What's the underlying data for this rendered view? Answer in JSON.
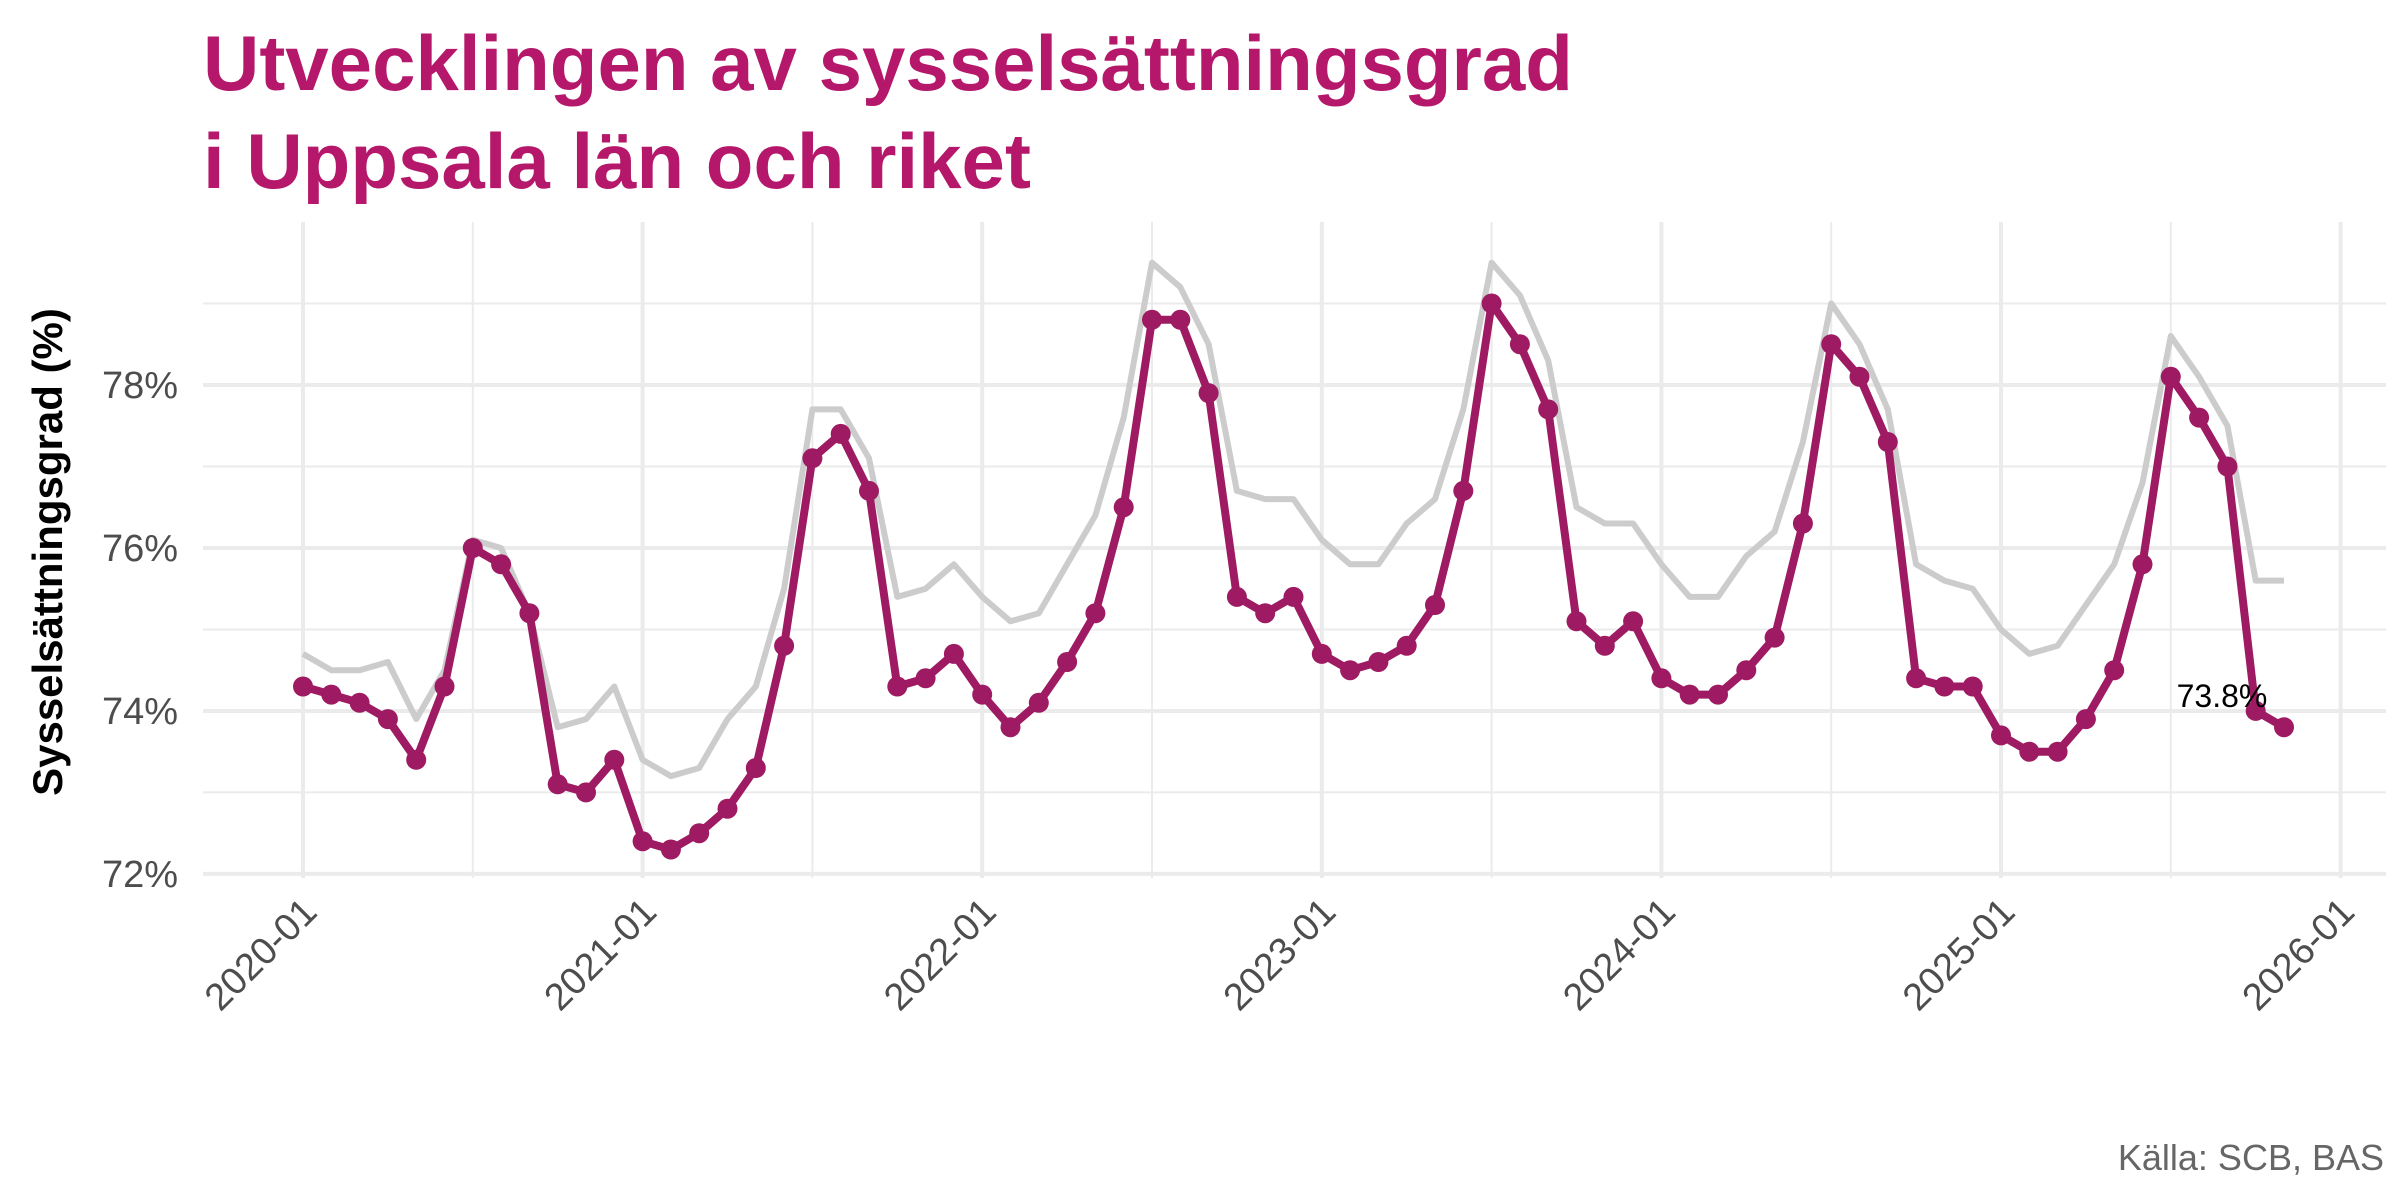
{
  "chart_data": {
    "type": "line",
    "title_lines": [
      "Utvecklingen av sysselsättningsgrad",
      "i Uppsala län och riket"
    ],
    "ylabel": "Sysselsättningsgrad (%)",
    "xlabel": "",
    "source": "Källa: SCB, BAS",
    "y_ticks": [
      72,
      74,
      76,
      78
    ],
    "y_tick_labels": [
      "72%",
      "74%",
      "76%",
      "78%"
    ],
    "ylim": [
      71.95,
      80.0
    ],
    "x_ticks": [
      "2020-01",
      "2021-01",
      "2022-01",
      "2023-01",
      "2024-01",
      "2025-01",
      "2026-01"
    ],
    "x_start": "2020-01",
    "x_end": "2025-11",
    "grid": true,
    "last_value_label": "73.8%",
    "colors": {
      "title": "#b5176a",
      "uppsala": "#9e1a62",
      "riket": "#cccccc",
      "grid": "#ebebeb"
    },
    "series": [
      {
        "key": "riket",
        "values": [
          74.7,
          74.5,
          74.5,
          74.6,
          73.9,
          74.5,
          76.1,
          76.0,
          75.2,
          73.8,
          73.9,
          74.3,
          73.4,
          73.2,
          73.3,
          73.9,
          74.3,
          75.5,
          77.7,
          77.7,
          77.1,
          75.4,
          75.5,
          75.8,
          75.4,
          75.1,
          75.2,
          75.8,
          76.4,
          77.6,
          79.5,
          79.2,
          78.5,
          76.7,
          76.6,
          76.6,
          76.1,
          75.8,
          75.8,
          76.3,
          76.6,
          77.7,
          79.5,
          79.1,
          78.3,
          76.5,
          76.3,
          76.3,
          75.8,
          75.4,
          75.4,
          75.9,
          76.2,
          77.3,
          79.0,
          78.5,
          77.7,
          75.8,
          75.6,
          75.5,
          75.0,
          74.7,
          74.8,
          75.3,
          75.8,
          76.8,
          78.6,
          78.1,
          77.5,
          75.6,
          75.6
        ]
      },
      {
        "key": "uppsala",
        "values": [
          74.3,
          74.2,
          74.1,
          73.9,
          73.4,
          74.3,
          76.0,
          75.8,
          75.2,
          73.1,
          73.0,
          73.4,
          72.4,
          72.3,
          72.5,
          72.8,
          73.3,
          74.8,
          77.1,
          77.4,
          76.7,
          74.3,
          74.4,
          74.7,
          74.2,
          73.8,
          74.1,
          74.6,
          75.2,
          76.5,
          78.8,
          78.8,
          77.9,
          75.4,
          75.2,
          75.4,
          74.7,
          74.5,
          74.6,
          74.8,
          75.3,
          76.7,
          79.0,
          78.5,
          77.7,
          75.1,
          74.8,
          75.1,
          74.4,
          74.2,
          74.2,
          74.5,
          74.9,
          76.3,
          78.5,
          78.1,
          77.3,
          74.4,
          74.3,
          74.3,
          73.7,
          73.5,
          73.5,
          73.9,
          74.5,
          75.8,
          78.1,
          77.6,
          77.0,
          74.0,
          73.8
        ]
      }
    ]
  }
}
